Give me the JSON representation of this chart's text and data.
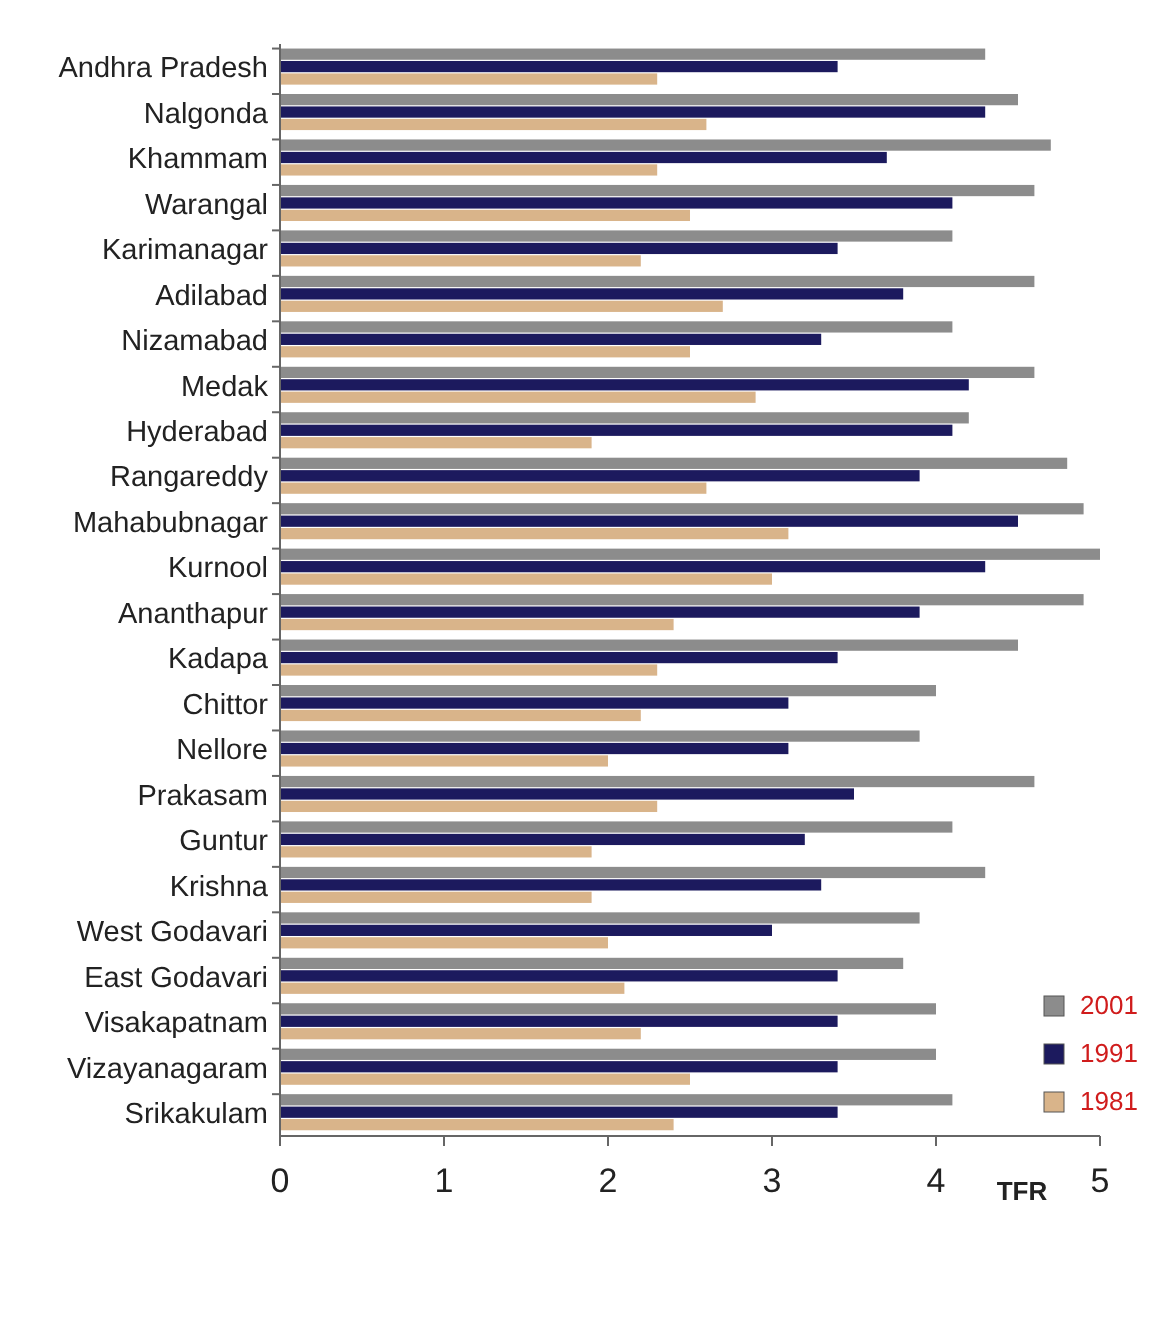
{
  "chart_data": {
    "type": "bar",
    "orientation": "horizontal",
    "xlabel": "TFR",
    "categories": [
      "Andhra Pradesh",
      "Nalgonda",
      "Khammam",
      "Warangal",
      "Karimanagar",
      "Adilabad",
      "Nizamabad",
      "Medak",
      "Hyderabad",
      "Rangareddy",
      "Mahabubnagar",
      "Kurnool",
      "Ananthapur",
      "Kadapa",
      "Chittor",
      "Nellore",
      "Prakasam",
      "Guntur",
      "Krishna",
      "West Godavari",
      "East Godavari",
      "Visakapatnam",
      "Vizayanagaram",
      "Srikakulam"
    ],
    "series": [
      {
        "name": "2001",
        "color": "#8c8c8c",
        "values": [
          4.3,
          4.5,
          4.7,
          4.6,
          4.1,
          4.6,
          4.1,
          4.6,
          4.2,
          4.8,
          4.9,
          5.0,
          4.9,
          4.5,
          4.0,
          3.9,
          4.6,
          4.1,
          4.3,
          3.9,
          3.8,
          4.0,
          4.0,
          4.1
        ]
      },
      {
        "name": "1991",
        "color": "#1c1a5e",
        "values": [
          3.4,
          4.3,
          3.7,
          4.1,
          3.4,
          3.8,
          3.3,
          4.2,
          4.1,
          3.9,
          4.5,
          4.3,
          3.9,
          3.4,
          3.1,
          3.1,
          3.5,
          3.2,
          3.3,
          3.0,
          3.4,
          3.4,
          3.4,
          3.4
        ]
      },
      {
        "name": "1981",
        "color": "#d9b48a",
        "values": [
          2.3,
          2.6,
          2.3,
          2.5,
          2.2,
          2.7,
          2.5,
          2.9,
          1.9,
          2.6,
          3.1,
          3.0,
          2.4,
          2.3,
          2.2,
          2.0,
          2.3,
          1.9,
          1.9,
          2.0,
          2.1,
          2.2,
          2.5,
          2.4
        ]
      }
    ],
    "xlim": [
      0,
      5
    ],
    "xticks": [
      0,
      1,
      2,
      3,
      4,
      5
    ],
    "grid": false,
    "legend": "bottom right"
  }
}
